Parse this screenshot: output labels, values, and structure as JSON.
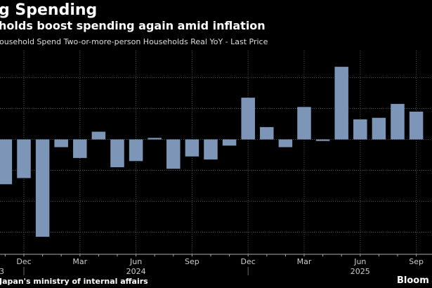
{
  "header": {
    "title": "g Spending",
    "subtitle": "holds boost spending again amid inflation",
    "legend": "ousehold Spend Two-or-more-person Households Real YoY - Last Price"
  },
  "footer": {
    "source": "Japan's ministry of internal affairs",
    "brand": "Bloom"
  },
  "colors": {
    "bar": "#7d96b8",
    "background": "#000000",
    "grid": "#555555"
  },
  "chart_data": {
    "type": "bar",
    "categories": [
      "Nov 2023",
      "Dec 2023",
      "Jan 2024",
      "Feb 2024",
      "Mar 2024",
      "Apr 2024",
      "May 2024",
      "Jun 2024",
      "Jul 2024",
      "Aug 2024",
      "Sep 2024",
      "Oct 2024",
      "Nov 2024",
      "Dec 2024",
      "Jan 2025",
      "Feb 2025",
      "Mar 2025",
      "Apr 2025",
      "May 2025",
      "Jun 2025",
      "Jul 2025",
      "Aug 2025",
      "Sep 2025"
    ],
    "values": [
      -2.9,
      -2.5,
      -6.3,
      -0.5,
      -1.2,
      0.5,
      -1.8,
      -1.4,
      0.1,
      -1.9,
      -1.1,
      -1.3,
      -0.4,
      2.7,
      0.8,
      -0.5,
      2.1,
      -0.1,
      4.7,
      1.3,
      1.4,
      2.3,
      1.8
    ],
    "ylim": [
      -7,
      5
    ],
    "y_gridlines": [
      4,
      2,
      0,
      -2,
      -4,
      -6
    ],
    "grid": true,
    "x_tick_labels": [
      {
        "label": "Dec",
        "month": "Dec 2023"
      },
      {
        "label": "Mar",
        "month": "Mar 2024"
      },
      {
        "label": "Jun",
        "month": "Jun 2024"
      },
      {
        "label": "Sep",
        "month": "Sep 2024"
      },
      {
        "label": "Dec",
        "month": "Dec 2024"
      },
      {
        "label": "Mar",
        "month": "Mar 2025"
      },
      {
        "label": "Jun",
        "month": "Jun 2025"
      },
      {
        "label": "Sep",
        "month": "Sep 2025"
      }
    ],
    "year_labels": [
      {
        "label": "3",
        "month": "Nov 2023"
      },
      {
        "label": "2024",
        "month": "Jun 2024"
      },
      {
        "label": "2025",
        "month": "Jun 2025"
      }
    ]
  }
}
